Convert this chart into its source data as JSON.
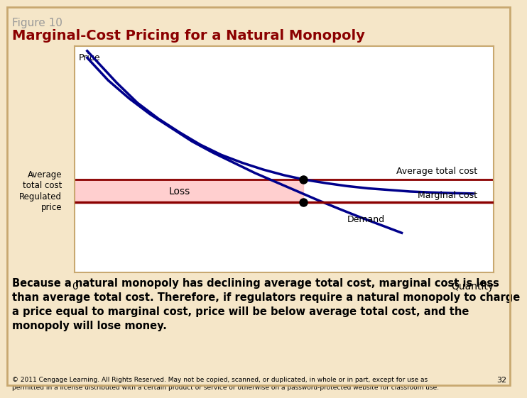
{
  "figure_label": "Figure 10",
  "title": "Marginal-Cost Pricing for a Natural Monopoly",
  "title_color": "#8B0000",
  "figure_label_color": "#999999",
  "bg_color": "#F5E6C8",
  "plot_bg_color": "#FFFFFF",
  "border_color": "#C8A870",
  "price_label": "Price",
  "xlabel": "Quantity",
  "x0_label": "0",
  "atc_label": "Average total cost",
  "mc_label": "Marginal cost",
  "demand_label": "Demand",
  "loss_label": "Loss",
  "avg_total_cost_ylabel": "Average\ntotal cost",
  "regulated_price_ylabel": "Regulated\nprice",
  "footnote": "© 2011 Cengage Learning. All Rights Reserved. May not be copied, scanned, or duplicated, in whole or in part, except for use as\npermitted in a license distributed with a certain product or service or otherwise on a password-protected website for classroom use.",
  "footnote_page": "32",
  "body_text": "Because a natural monopoly has declining average total cost, marginal cost is less\nthan average total cost. Therefore, if regulators require a natural monopoly to charge\na price equal to marginal cost, price will be below average total cost, and the\nmonopoly will lose money.",
  "curve_color": "#00008B",
  "mc_color": "#8B0000",
  "loss_fill_color": "#FFB6B6",
  "loss_fill_alpha": 0.65,
  "dot_color": "#000000",
  "xlim": [
    0,
    10
  ],
  "ylim": [
    0,
    10
  ],
  "atc_x": [
    0.3,
    0.6,
    1.0,
    1.5,
    2.0,
    2.5,
    3.0,
    3.5,
    4.0,
    4.5,
    5.0,
    5.5,
    6.0,
    6.5,
    7.0,
    7.5,
    8.0,
    8.5,
    9.0,
    9.5
  ],
  "atc_y": [
    9.8,
    9.2,
    8.4,
    7.5,
    6.8,
    6.2,
    5.65,
    5.2,
    4.85,
    4.55,
    4.3,
    4.1,
    3.95,
    3.82,
    3.72,
    3.65,
    3.58,
    3.54,
    3.51,
    3.49
  ],
  "demand_x": [
    0.3,
    0.8,
    1.3,
    1.8,
    2.3,
    2.8,
    3.3,
    3.8,
    4.3,
    4.8,
    5.3,
    5.8,
    6.3,
    6.8,
    7.3,
    7.8
  ],
  "demand_y": [
    9.5,
    8.5,
    7.7,
    7.0,
    6.4,
    5.8,
    5.3,
    4.85,
    4.4,
    4.0,
    3.6,
    3.2,
    2.82,
    2.45,
    2.1,
    1.75
  ],
  "mc_level": 3.1,
  "atc_level": 4.1,
  "q_intersection": 5.45,
  "loss_x_right": 5.45
}
